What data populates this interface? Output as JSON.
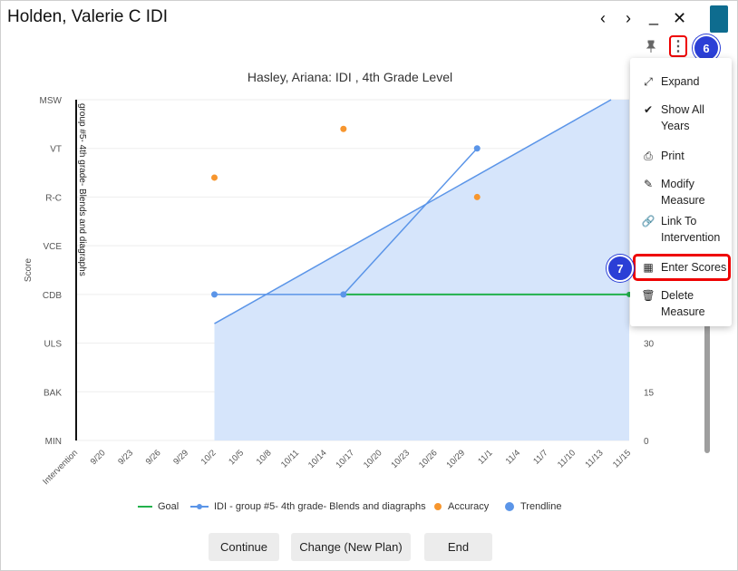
{
  "window": {
    "title": "Holden, Valerie C IDI",
    "controls": {
      "prev": "‹",
      "next": "›",
      "minimize": "_",
      "close": "✕"
    }
  },
  "toolbar": {
    "kebab_glyph": "⋮",
    "pin_glyph": "📌"
  },
  "badges": {
    "menu_step": "6",
    "enter_step": "7"
  },
  "menu": {
    "items": [
      {
        "icon": "expand-icon",
        "glyph": "⤢",
        "label": "Expand"
      },
      {
        "icon": "double-check-icon",
        "glyph": "✔",
        "label": "Show All\nYears"
      },
      {
        "icon": "print-icon",
        "glyph": "⎙",
        "label": "Print"
      },
      {
        "icon": "edit-icon",
        "glyph": "✎",
        "label": "Modify\nMeasure"
      },
      {
        "icon": "link-icon",
        "glyph": "🔗",
        "label": "Link To\nIntervention"
      },
      {
        "icon": "table-icon",
        "glyph": "▦",
        "label": "Enter Scores"
      },
      {
        "icon": "trash-icon",
        "glyph": "🗑",
        "label": "Delete\nMeasure"
      }
    ]
  },
  "chart_data": {
    "type": "line",
    "title": "Hasley, Ariana: IDI , 4th Grade Level",
    "ylabel": "Score",
    "y_levels": [
      "MIN",
      "BAK",
      "ULS",
      "CDB",
      "VCE",
      "R-C",
      "VT",
      "MSW"
    ],
    "right_ticks_visible": [
      "0",
      "15",
      "30"
    ],
    "x_categories": [
      "Intervention",
      "9/20",
      "9/23",
      "9/26",
      "9/29",
      "10/2",
      "10/5",
      "10/8",
      "10/11",
      "10/14",
      "10/17",
      "10/20",
      "10/23",
      "10/26",
      "10/29",
      "11/1",
      "11/4",
      "11/7",
      "11/10",
      "11/13",
      "11/15"
    ],
    "intervention_label": "group #5- 4th grade- Blends and diagraphs",
    "colors": {
      "goal": "#22b14c",
      "idi": "#5b95e8",
      "accuracy": "#f7962e",
      "trendline": "#5b95e8",
      "area": "#d6e5fb"
    },
    "series": [
      {
        "name": "IDI - group #5- 4th grade- Blends and diagraphs",
        "points": [
          [
            "10/2",
            "CDB"
          ],
          [
            "10/16",
            "CDB"
          ],
          [
            "10/30",
            "VT"
          ]
        ]
      },
      {
        "name": "Goal",
        "points": [
          [
            "10/16",
            "CDB"
          ],
          [
            "11/15",
            "CDB"
          ]
        ]
      },
      {
        "name": "Accuracy",
        "points": [
          [
            "10/2",
            "R-C+"
          ],
          [
            "10/16",
            "VT+"
          ],
          [
            "10/30",
            "R-C"
          ]
        ]
      },
      {
        "name": "Trendline",
        "start": [
          "10/2",
          "ULS+"
        ],
        "end": [
          "11/15",
          "MSW"
        ]
      }
    ],
    "legend": [
      "Goal",
      "IDI - group #5- 4th grade- Blends and diagraphs",
      "Accuracy",
      "Trendline"
    ]
  },
  "buttons": {
    "continue": "Continue",
    "change": "Change (New Plan)",
    "end": "End"
  }
}
